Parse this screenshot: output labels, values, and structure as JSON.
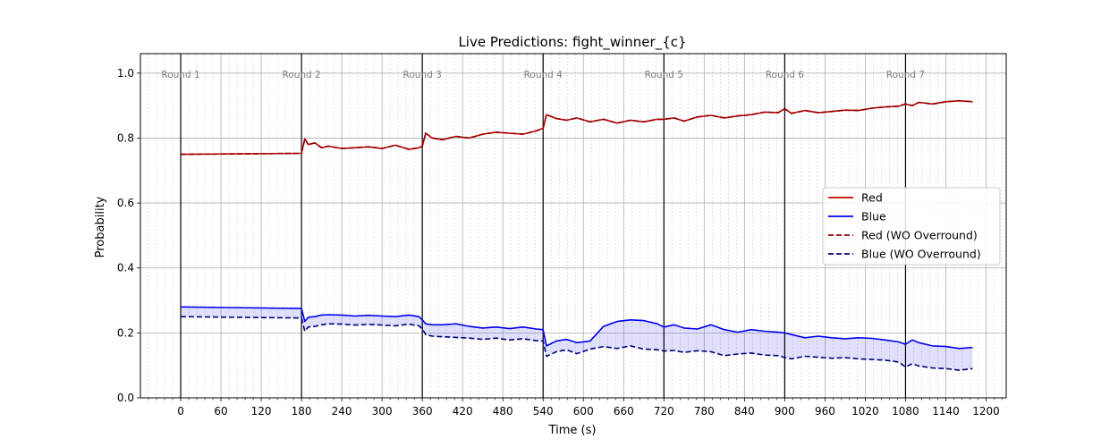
{
  "chart_data": {
    "type": "line",
    "title": "Live Predictions: fight_winner_{c}",
    "xlabel": "Time (s)",
    "ylabel": "Probability",
    "xlim": [
      -60,
      1230
    ],
    "ylim": [
      0,
      1.06
    ],
    "x_ticks": [
      0,
      60,
      120,
      180,
      240,
      300,
      360,
      420,
      480,
      540,
      600,
      660,
      720,
      780,
      840,
      900,
      960,
      1020,
      1080,
      1140,
      1200
    ],
    "y_ticks": [
      0.0,
      0.2,
      0.4,
      0.6,
      0.8,
      1.0
    ],
    "y_tick_labels": [
      "0.0",
      "0.2",
      "0.4",
      "0.6",
      "0.8",
      "1.0"
    ],
    "grid": true,
    "legend_position": "center-right",
    "round_markers": [
      {
        "x": 0,
        "label": "Round 1"
      },
      {
        "x": 180,
        "label": "Round 2"
      },
      {
        "x": 360,
        "label": "Round 3"
      },
      {
        "x": 540,
        "label": "Round 4"
      },
      {
        "x": 720,
        "label": "Round 5"
      },
      {
        "x": 900,
        "label": "Round 6"
      },
      {
        "x": 1080,
        "label": "Round 7"
      }
    ],
    "x": [
      0,
      180,
      185,
      190,
      200,
      210,
      220,
      240,
      260,
      280,
      300,
      320,
      340,
      355,
      360,
      365,
      375,
      390,
      410,
      430,
      450,
      470,
      490,
      510,
      530,
      540,
      545,
      560,
      575,
      590,
      610,
      630,
      650,
      670,
      690,
      710,
      720,
      735,
      750,
      770,
      790,
      810,
      830,
      850,
      870,
      890,
      900,
      910,
      930,
      950,
      970,
      990,
      1010,
      1030,
      1050,
      1070,
      1080,
      1090,
      1100,
      1120,
      1140,
      1160,
      1180
    ],
    "series": [
      {
        "name": "Red",
        "color": "#cc0000",
        "style": "solid",
        "values": [
          0.75,
          0.753,
          0.798,
          0.78,
          0.785,
          0.77,
          0.775,
          0.768,
          0.77,
          0.773,
          0.768,
          0.778,
          0.765,
          0.77,
          0.775,
          0.815,
          0.8,
          0.795,
          0.805,
          0.8,
          0.812,
          0.818,
          0.815,
          0.812,
          0.822,
          0.83,
          0.872,
          0.86,
          0.855,
          0.862,
          0.85,
          0.858,
          0.846,
          0.855,
          0.85,
          0.858,
          0.858,
          0.862,
          0.852,
          0.865,
          0.87,
          0.862,
          0.868,
          0.872,
          0.88,
          0.878,
          0.89,
          0.876,
          0.885,
          0.878,
          0.882,
          0.886,
          0.885,
          0.892,
          0.896,
          0.898,
          0.905,
          0.9,
          0.91,
          0.905,
          0.912,
          0.915,
          0.912
        ]
      },
      {
        "name": "Blue",
        "color": "#0000ee",
        "style": "solid",
        "values": [
          0.28,
          0.275,
          0.235,
          0.248,
          0.25,
          0.255,
          0.256,
          0.255,
          0.252,
          0.254,
          0.252,
          0.25,
          0.255,
          0.25,
          0.24,
          0.228,
          0.225,
          0.225,
          0.228,
          0.22,
          0.215,
          0.218,
          0.213,
          0.218,
          0.212,
          0.21,
          0.16,
          0.175,
          0.18,
          0.17,
          0.175,
          0.22,
          0.235,
          0.24,
          0.238,
          0.228,
          0.218,
          0.225,
          0.215,
          0.212,
          0.225,
          0.21,
          0.202,
          0.21,
          0.205,
          0.202,
          0.2,
          0.195,
          0.185,
          0.19,
          0.185,
          0.182,
          0.185,
          0.183,
          0.178,
          0.172,
          0.165,
          0.178,
          0.17,
          0.16,
          0.158,
          0.152,
          0.155
        ]
      },
      {
        "name": "Red (WO Overround)",
        "color": "#8b0000",
        "style": "dashed",
        "values": [
          0.75,
          0.753,
          0.798,
          0.78,
          0.785,
          0.77,
          0.775,
          0.768,
          0.77,
          0.773,
          0.768,
          0.778,
          0.765,
          0.77,
          0.775,
          0.815,
          0.8,
          0.795,
          0.805,
          0.8,
          0.812,
          0.818,
          0.815,
          0.812,
          0.822,
          0.83,
          0.872,
          0.86,
          0.855,
          0.862,
          0.85,
          0.858,
          0.846,
          0.855,
          0.85,
          0.858,
          0.858,
          0.862,
          0.852,
          0.865,
          0.87,
          0.862,
          0.868,
          0.872,
          0.88,
          0.878,
          0.89,
          0.876,
          0.885,
          0.878,
          0.882,
          0.886,
          0.885,
          0.892,
          0.896,
          0.898,
          0.905,
          0.9,
          0.91,
          0.905,
          0.912,
          0.915,
          0.912
        ]
      },
      {
        "name": "Blue (WO Overround)",
        "color": "#00007a",
        "style": "dashed",
        "values": [
          0.25,
          0.246,
          0.205,
          0.218,
          0.22,
          0.225,
          0.228,
          0.227,
          0.224,
          0.226,
          0.224,
          0.222,
          0.227,
          0.222,
          0.212,
          0.195,
          0.19,
          0.188,
          0.186,
          0.184,
          0.18,
          0.184,
          0.178,
          0.182,
          0.176,
          0.175,
          0.128,
          0.142,
          0.148,
          0.136,
          0.15,
          0.158,
          0.152,
          0.16,
          0.15,
          0.148,
          0.144,
          0.146,
          0.14,
          0.145,
          0.142,
          0.13,
          0.135,
          0.138,
          0.132,
          0.13,
          0.124,
          0.12,
          0.128,
          0.125,
          0.122,
          0.124,
          0.12,
          0.118,
          0.116,
          0.11,
          0.095,
          0.105,
          0.098,
          0.092,
          0.09,
          0.085,
          0.09
        ]
      }
    ],
    "fill_between": [
      {
        "upper": "Blue",
        "lower": "Blue (WO Overround)",
        "color": "#0000ee",
        "opacity": 0.12
      }
    ]
  }
}
